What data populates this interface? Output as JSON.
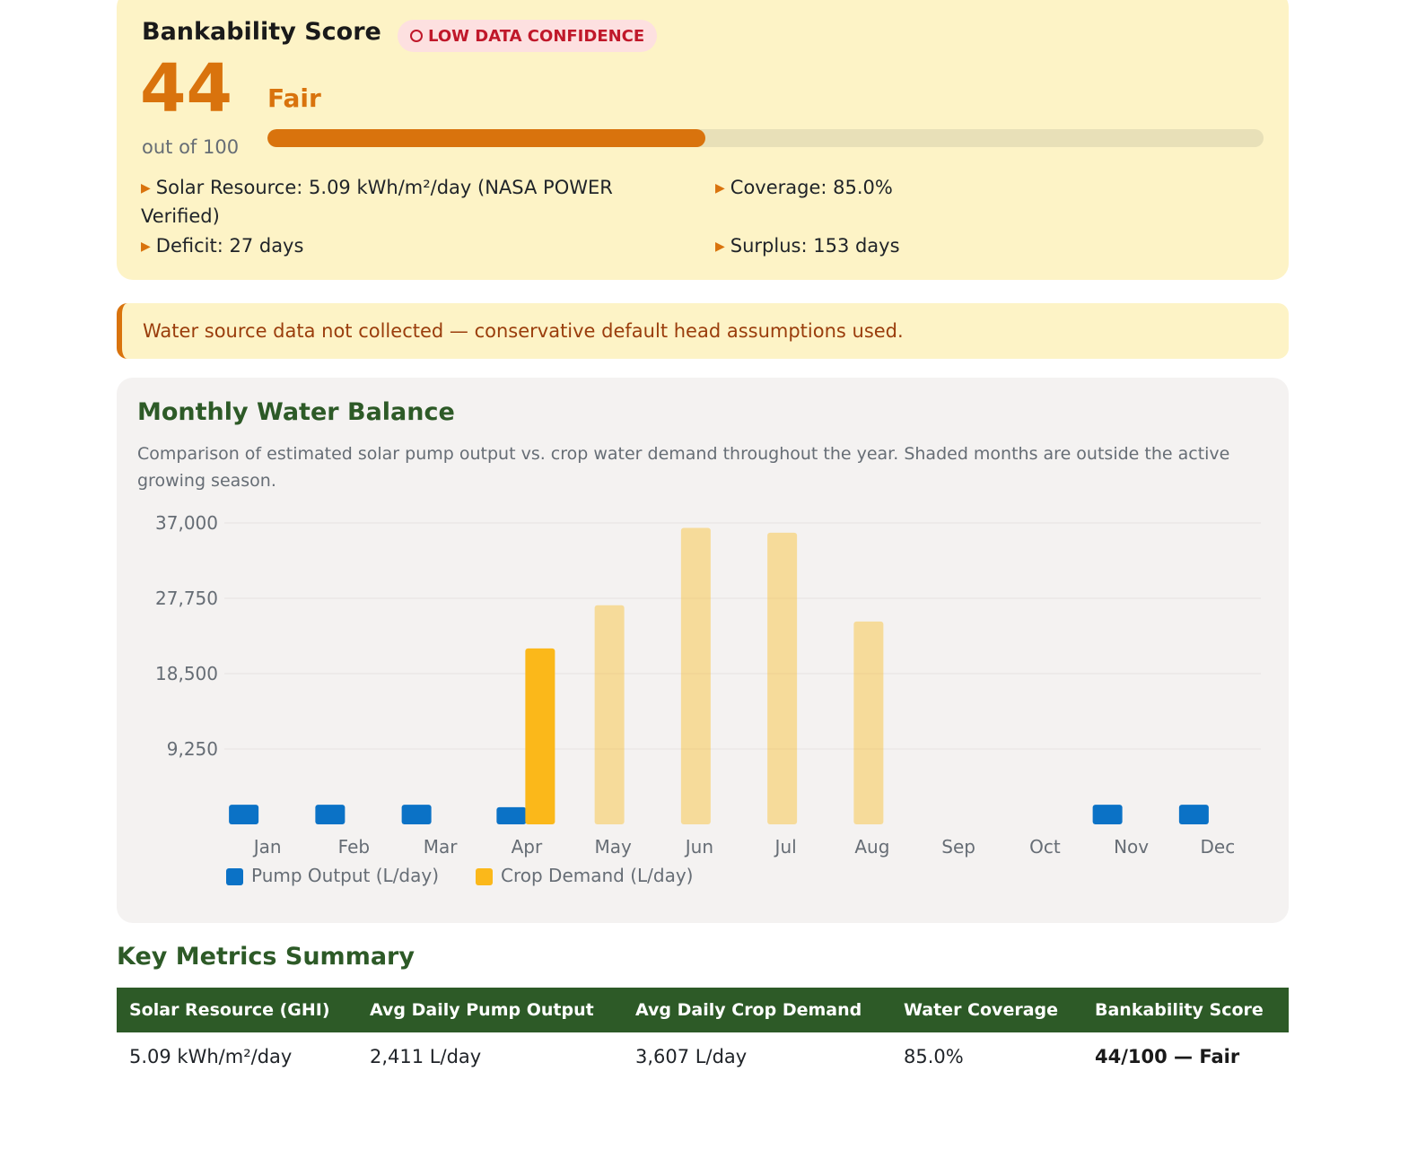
{
  "score_card": {
    "title": "Bankability Score",
    "badge": "LOW DATA CONFIDENCE",
    "score": "44",
    "out_of": "out of 100",
    "rating": "Fair",
    "progress_fraction": 0.44,
    "facts": {
      "solar": "Solar Resource: 5.09 kWh/m²/day (NASA POWER Verified)",
      "coverage": "Coverage: 85.0%",
      "deficit": "Deficit: 27 days",
      "surplus": "Surplus: 153 days"
    },
    "accent_color": "#d9730d",
    "badge_color": "#c0182a"
  },
  "notice": {
    "text": "Water source data not collected — conservative default head assumptions used."
  },
  "chart_section": {
    "title": "Monthly Water Balance",
    "description": "Comparison of estimated solar pump output vs. crop water demand throughout the year. Shaded months are outside the active growing season."
  },
  "chart_data": {
    "type": "bar",
    "categories": [
      "Jan",
      "Feb",
      "Mar",
      "Apr",
      "May",
      "Jun",
      "Jul",
      "Aug",
      "Sep",
      "Oct",
      "Nov",
      "Dec"
    ],
    "ylim": [
      0,
      37000
    ],
    "yticks": [
      9250,
      18500,
      27750,
      37000
    ],
    "ytick_labels": [
      "9,250",
      "18,500",
      "27,750",
      "37,000"
    ],
    "grid": true,
    "legend_position": "bottom-left",
    "series": [
      {
        "name": "Pump Output (L/day)",
        "color": "#0b72c6",
        "values": [
          2411,
          2411,
          2411,
          2100,
          null,
          null,
          null,
          null,
          null,
          null,
          2411,
          2411
        ]
      },
      {
        "name": "Crop Demand (L/day)",
        "color": "#fbb81a",
        "values": [
          null,
          null,
          null,
          21600,
          26900,
          36400,
          35800,
          24900,
          null,
          null,
          null,
          null
        ]
      }
    ],
    "growing_season_months": [
      "Apr"
    ],
    "faded_opacity": 0.4
  },
  "metrics": {
    "title": "Key Metrics Summary",
    "headers": [
      "Solar Resource (GHI)",
      "Avg Daily Pump Output",
      "Avg Daily Crop Demand",
      "Water Coverage",
      "Bankability Score"
    ],
    "values": [
      "5.09 kWh/m²/day",
      "2,411 L/day",
      "3,607 L/day",
      "85.0%",
      "44/100 — Fair"
    ],
    "header_color": "#2d5a27"
  }
}
